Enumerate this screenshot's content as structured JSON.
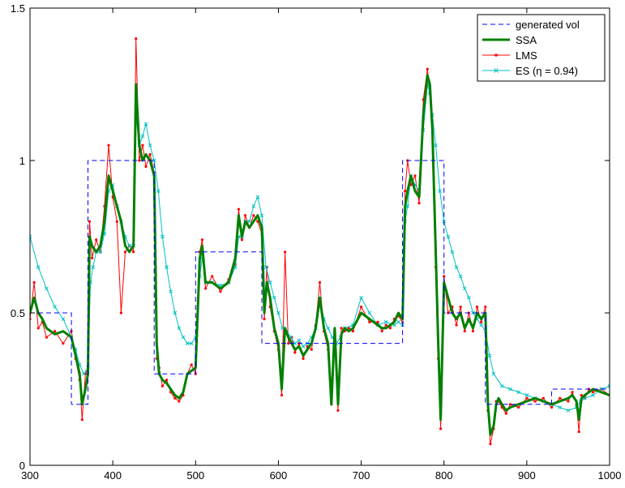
{
  "chart_data": {
    "type": "line",
    "title": "",
    "xlabel": "",
    "ylabel": "",
    "xlim": [
      300,
      1000
    ],
    "ylim": [
      0,
      1.5
    ],
    "x_ticks": [
      300,
      400,
      500,
      600,
      700,
      800,
      900,
      1000
    ],
    "y_ticks": [
      0,
      0.5,
      1,
      1.5
    ],
    "x_tick_labels": [
      "300",
      "400",
      "500",
      "600",
      "700",
      "800",
      "900",
      "1000"
    ],
    "y_tick_labels": [
      "0",
      "0.5",
      "1",
      "1.5"
    ],
    "grid": false,
    "legend_position": "top-right",
    "series": [
      {
        "name": "generated vol",
        "color": "#0000ff",
        "style": "dashed",
        "x": [
          300,
          350,
          350,
          370,
          370,
          450,
          450,
          500,
          500,
          580,
          580,
          750,
          750,
          800,
          800,
          850,
          850,
          930,
          930,
          1000
        ],
        "y": [
          0.5,
          0.5,
          0.2,
          0.2,
          1.0,
          1.0,
          0.3,
          0.3,
          0.7,
          0.7,
          0.4,
          0.4,
          1.0,
          1.0,
          0.5,
          0.5,
          0.2,
          0.2,
          0.25,
          0.25
        ]
      },
      {
        "name": "SSA",
        "color": "#008000",
        "style": "thick",
        "x": [
          300,
          305,
          310,
          315,
          320,
          330,
          340,
          350,
          355,
          360,
          363,
          367,
          370,
          372,
          375,
          380,
          385,
          390,
          395,
          400,
          405,
          410,
          415,
          420,
          425,
          428,
          432,
          436,
          440,
          445,
          450,
          453,
          456,
          460,
          465,
          470,
          475,
          480,
          485,
          490,
          495,
          500,
          505,
          508,
          512,
          520,
          530,
          540,
          548,
          552,
          556,
          560,
          565,
          570,
          575,
          580,
          583,
          586,
          590,
          595,
          600,
          604,
          608,
          612,
          616,
          620,
          625,
          630,
          635,
          640,
          645,
          650,
          655,
          660,
          664,
          668,
          672,
          676,
          680,
          685,
          690,
          700,
          710,
          720,
          725,
          730,
          735,
          740,
          745,
          750,
          753,
          756,
          760,
          765,
          770,
          775,
          780,
          783,
          786,
          790,
          793,
          796,
          800,
          805,
          810,
          815,
          820,
          825,
          830,
          835,
          840,
          845,
          850,
          853,
          856,
          860,
          863,
          866,
          870,
          875,
          880,
          890,
          900,
          910,
          920,
          930,
          940,
          950,
          955,
          960,
          963,
          966,
          970,
          975,
          980,
          990,
          1000
        ],
        "y": [
          0.5,
          0.55,
          0.5,
          0.48,
          0.45,
          0.43,
          0.44,
          0.42,
          0.36,
          0.3,
          0.2,
          0.25,
          0.3,
          0.75,
          0.72,
          0.7,
          0.72,
          0.8,
          0.95,
          0.9,
          0.85,
          0.8,
          0.72,
          0.7,
          0.72,
          1.25,
          1.05,
          1.0,
          1.02,
          1.0,
          0.95,
          0.4,
          0.3,
          0.28,
          0.27,
          0.25,
          0.23,
          0.22,
          0.24,
          0.3,
          0.31,
          0.32,
          0.68,
          0.72,
          0.6,
          0.6,
          0.58,
          0.6,
          0.68,
          0.82,
          0.75,
          0.8,
          0.78,
          0.8,
          0.82,
          0.78,
          0.5,
          0.6,
          0.55,
          0.45,
          0.4,
          0.25,
          0.45,
          0.42,
          0.4,
          0.38,
          0.39,
          0.36,
          0.38,
          0.4,
          0.45,
          0.55,
          0.45,
          0.4,
          0.2,
          0.45,
          0.2,
          0.43,
          0.45,
          0.44,
          0.45,
          0.5,
          0.48,
          0.46,
          0.45,
          0.45,
          0.46,
          0.47,
          0.5,
          0.48,
          0.85,
          0.9,
          0.95,
          0.9,
          0.88,
          1.15,
          1.28,
          1.25,
          1.1,
          0.7,
          0.4,
          0.15,
          0.6,
          0.55,
          0.5,
          0.48,
          0.5,
          0.45,
          0.48,
          0.45,
          0.5,
          0.48,
          0.5,
          0.2,
          0.1,
          0.13,
          0.2,
          0.22,
          0.2,
          0.18,
          0.19,
          0.2,
          0.21,
          0.22,
          0.21,
          0.2,
          0.21,
          0.22,
          0.23,
          0.21,
          0.15,
          0.22,
          0.23,
          0.24,
          0.25,
          0.24,
          0.23
        ]
      },
      {
        "name": "LMS",
        "color": "#ff0000",
        "style": "line-dot",
        "x": [
          300,
          305,
          310,
          315,
          320,
          330,
          340,
          350,
          355,
          360,
          363,
          367,
          370,
          372,
          375,
          380,
          385,
          390,
          395,
          400,
          405,
          410,
          415,
          420,
          425,
          428,
          432,
          436,
          440,
          445,
          450,
          453,
          456,
          460,
          465,
          470,
          475,
          480,
          485,
          490,
          495,
          500,
          505,
          508,
          512,
          520,
          530,
          540,
          548,
          552,
          556,
          560,
          565,
          570,
          575,
          580,
          583,
          586,
          590,
          595,
          600,
          604,
          608,
          612,
          616,
          620,
          625,
          630,
          635,
          640,
          645,
          650,
          655,
          660,
          664,
          668,
          672,
          676,
          680,
          685,
          690,
          700,
          710,
          720,
          725,
          730,
          735,
          740,
          745,
          750,
          753,
          756,
          760,
          765,
          770,
          775,
          780,
          783,
          786,
          790,
          793,
          796,
          800,
          805,
          810,
          815,
          820,
          825,
          830,
          835,
          840,
          845,
          850,
          853,
          856,
          860,
          863,
          866,
          870,
          875,
          880,
          890,
          900,
          910,
          920,
          930,
          940,
          950,
          955,
          960,
          963,
          966,
          970,
          975,
          980,
          990,
          1000
        ],
        "y": [
          0.48,
          0.6,
          0.45,
          0.47,
          0.42,
          0.44,
          0.4,
          0.44,
          0.35,
          0.28,
          0.15,
          0.3,
          0.32,
          0.8,
          0.68,
          0.74,
          0.7,
          0.85,
          1.05,
          0.88,
          0.8,
          0.5,
          0.7,
          0.72,
          0.7,
          1.4,
          1.0,
          1.05,
          0.98,
          1.02,
          0.96,
          0.35,
          0.32,
          0.26,
          0.28,
          0.24,
          0.22,
          0.21,
          0.23,
          0.3,
          0.33,
          0.3,
          0.7,
          0.74,
          0.58,
          0.62,
          0.57,
          0.61,
          0.66,
          0.84,
          0.74,
          0.82,
          0.78,
          0.82,
          0.8,
          0.76,
          0.48,
          0.65,
          0.52,
          0.44,
          0.38,
          0.23,
          0.7,
          0.4,
          0.42,
          0.37,
          0.4,
          0.35,
          0.39,
          0.38,
          0.46,
          0.6,
          0.44,
          0.38,
          0.2,
          0.44,
          0.18,
          0.45,
          0.44,
          0.45,
          0.44,
          0.52,
          0.47,
          0.47,
          0.44,
          0.46,
          0.45,
          0.48,
          0.49,
          0.47,
          0.9,
          1.0,
          0.92,
          0.95,
          0.86,
          1.2,
          1.3,
          1.22,
          1.12,
          0.65,
          0.35,
          0.12,
          0.62,
          0.5,
          0.52,
          0.46,
          0.52,
          0.44,
          0.5,
          0.44,
          0.52,
          0.47,
          0.52,
          0.18,
          0.07,
          0.12,
          0.21,
          0.21,
          0.19,
          0.17,
          0.2,
          0.19,
          0.22,
          0.21,
          0.22,
          0.19,
          0.22,
          0.21,
          0.24,
          0.2,
          0.11,
          0.23,
          0.22,
          0.25,
          0.24,
          0.25,
          0.23
        ]
      },
      {
        "name": "ES (η = 0.94)",
        "color": "#00c0c0",
        "style": "line-x",
        "x": [
          300,
          310,
          320,
          330,
          340,
          350,
          355,
          360,
          365,
          370,
          373,
          376,
          380,
          385,
          390,
          395,
          400,
          405,
          410,
          415,
          420,
          425,
          428,
          432,
          436,
          440,
          445,
          450,
          455,
          460,
          465,
          470,
          475,
          480,
          485,
          490,
          495,
          500,
          505,
          508,
          512,
          520,
          530,
          540,
          548,
          552,
          556,
          560,
          565,
          570,
          575,
          580,
          585,
          590,
          595,
          600,
          605,
          610,
          615,
          620,
          625,
          630,
          635,
          640,
          645,
          650,
          655,
          660,
          665,
          670,
          675,
          680,
          690,
          700,
          710,
          720,
          730,
          740,
          745,
          750,
          753,
          756,
          760,
          765,
          770,
          775,
          780,
          783,
          786,
          790,
          795,
          800,
          805,
          810,
          815,
          820,
          825,
          830,
          835,
          840,
          845,
          850,
          855,
          860,
          870,
          880,
          890,
          900,
          910,
          920,
          930,
          940,
          950,
          960,
          965,
          970,
          980,
          990,
          1000
        ],
        "y": [
          0.75,
          0.65,
          0.58,
          0.52,
          0.48,
          0.42,
          0.38,
          0.33,
          0.3,
          0.32,
          0.6,
          0.65,
          0.7,
          0.7,
          0.76,
          0.9,
          0.92,
          0.85,
          0.8,
          0.75,
          0.72,
          0.72,
          1.15,
          1.05,
          1.08,
          1.12,
          1.05,
          1.0,
          0.9,
          0.75,
          0.65,
          0.57,
          0.5,
          0.45,
          0.42,
          0.4,
          0.4,
          0.42,
          0.62,
          0.68,
          0.6,
          0.6,
          0.59,
          0.6,
          0.65,
          0.75,
          0.75,
          0.8,
          0.8,
          0.85,
          0.88,
          0.82,
          0.65,
          0.6,
          0.55,
          0.5,
          0.45,
          0.44,
          0.42,
          0.4,
          0.41,
          0.39,
          0.4,
          0.42,
          0.45,
          0.55,
          0.48,
          0.45,
          0.42,
          0.4,
          0.42,
          0.45,
          0.46,
          0.55,
          0.5,
          0.46,
          0.47,
          0.46,
          0.47,
          0.46,
          0.8,
          0.85,
          0.95,
          0.92,
          0.9,
          1.1,
          1.25,
          1.22,
          1.15,
          1.05,
          0.9,
          0.8,
          0.75,
          0.7,
          0.65,
          0.62,
          0.58,
          0.55,
          0.5,
          0.48,
          0.46,
          0.44,
          0.36,
          0.3,
          0.26,
          0.25,
          0.24,
          0.23,
          0.22,
          0.21,
          0.2,
          0.19,
          0.18,
          0.19,
          0.21,
          0.22,
          0.23,
          0.25,
          0.26
        ]
      }
    ]
  }
}
